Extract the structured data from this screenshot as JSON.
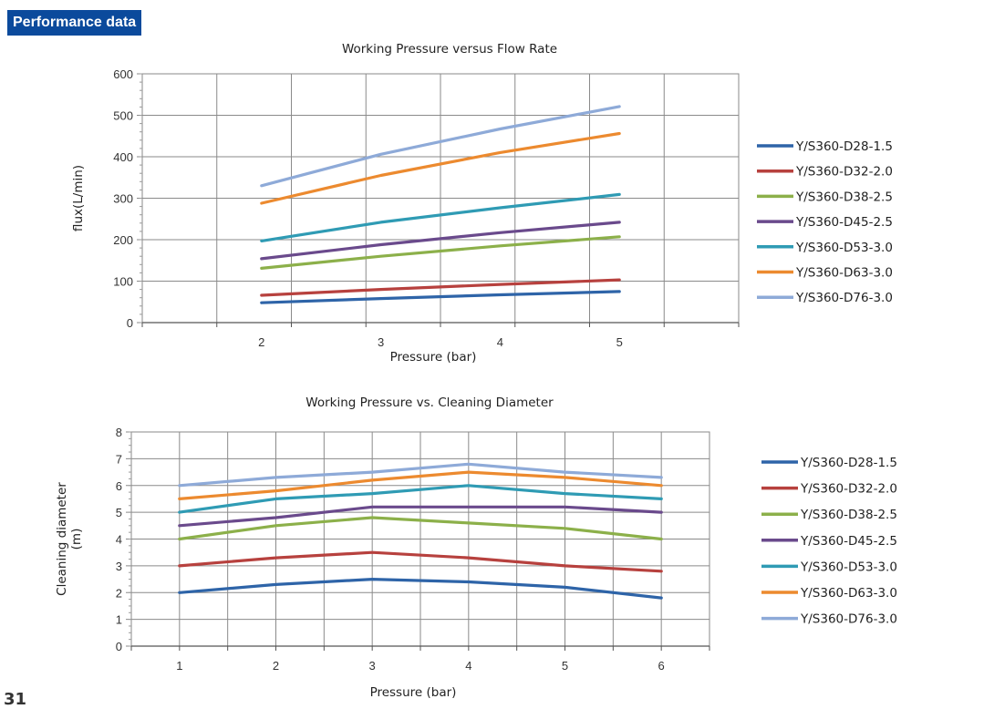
{
  "page": {
    "section_label": "Performance data",
    "page_number": "31"
  },
  "chart_data": [
    {
      "type": "line",
      "title": "Working Pressure versus Flow Rate",
      "xlabel": "Pressure (bar)",
      "ylabel": "flux(L/min)",
      "x": [
        2,
        3,
        4,
        5
      ],
      "xlim": [
        1,
        6
      ],
      "ylim": [
        0,
        600
      ],
      "yticks": [
        0,
        100,
        200,
        300,
        400,
        500,
        600
      ],
      "legend_position": "right",
      "series": [
        {
          "name": "Y/S360-D28-1.5",
          "color": "#2e64a8",
          "values": [
            48,
            58,
            67,
            75
          ]
        },
        {
          "name": "Y/S360-D32-2.0",
          "color": "#b7413e",
          "values": [
            66,
            80,
            92,
            103
          ]
        },
        {
          "name": "Y/S360-D38-2.5",
          "color": "#8cb04a",
          "values": [
            131,
            160,
            185,
            207
          ]
        },
        {
          "name": "Y/S360-D45-2.5",
          "color": "#6a4a8c",
          "values": [
            154,
            188,
            217,
            242
          ]
        },
        {
          "name": "Y/S360-D53-3.0",
          "color": "#2f9bb4",
          "values": [
            197,
            242,
            277,
            309
          ]
        },
        {
          "name": "Y/S360-D63-3.0",
          "color": "#ec8a2f",
          "values": [
            288,
            355,
            410,
            456
          ]
        },
        {
          "name": "Y/S360-D76-3.0",
          "color": "#8eaad8",
          "values": [
            330,
            406,
            467,
            521
          ]
        }
      ]
    },
    {
      "type": "line",
      "title": "Working Pressure vs. Cleaning Diameter",
      "xlabel": "Pressure (bar)",
      "ylabel": "Cleaning diameter (m)",
      "ylabel_lines": [
        "Cleaning diameter",
        "(m)"
      ],
      "x": [
        1,
        2,
        3,
        4,
        5,
        6
      ],
      "xlim": [
        0.5,
        6.5
      ],
      "ylim": [
        0,
        8
      ],
      "yticks": [
        0,
        1,
        2,
        3,
        4,
        5,
        6,
        7,
        8
      ],
      "legend_position": "right",
      "series": [
        {
          "name": "Y/S360-D28-1.5",
          "color": "#2e64a8",
          "values": [
            2.0,
            2.3,
            2.5,
            2.4,
            2.2,
            1.8
          ]
        },
        {
          "name": "Y/S360-D32-2.0",
          "color": "#b7413e",
          "values": [
            3.0,
            3.3,
            3.5,
            3.3,
            3.0,
            2.8
          ]
        },
        {
          "name": "Y/S360-D38-2.5",
          "color": "#8cb04a",
          "values": [
            4.0,
            4.5,
            4.8,
            4.6,
            4.4,
            4.0
          ]
        },
        {
          "name": "Y/S360-D45-2.5",
          "color": "#6a4a8c",
          "values": [
            4.5,
            4.8,
            5.2,
            5.2,
            5.2,
            5.0
          ]
        },
        {
          "name": "Y/S360-D53-3.0",
          "color": "#2f9bb4",
          "values": [
            5.0,
            5.5,
            5.7,
            6.0,
            5.7,
            5.5
          ]
        },
        {
          "name": "Y/S360-D63-3.0",
          "color": "#ec8a2f",
          "values": [
            5.5,
            5.8,
            6.2,
            6.5,
            6.3,
            6.0
          ]
        },
        {
          "name": "Y/S360-D76-3.0",
          "color": "#8eaad8",
          "values": [
            6.0,
            6.3,
            6.5,
            6.8,
            6.5,
            6.3
          ]
        }
      ]
    }
  ]
}
